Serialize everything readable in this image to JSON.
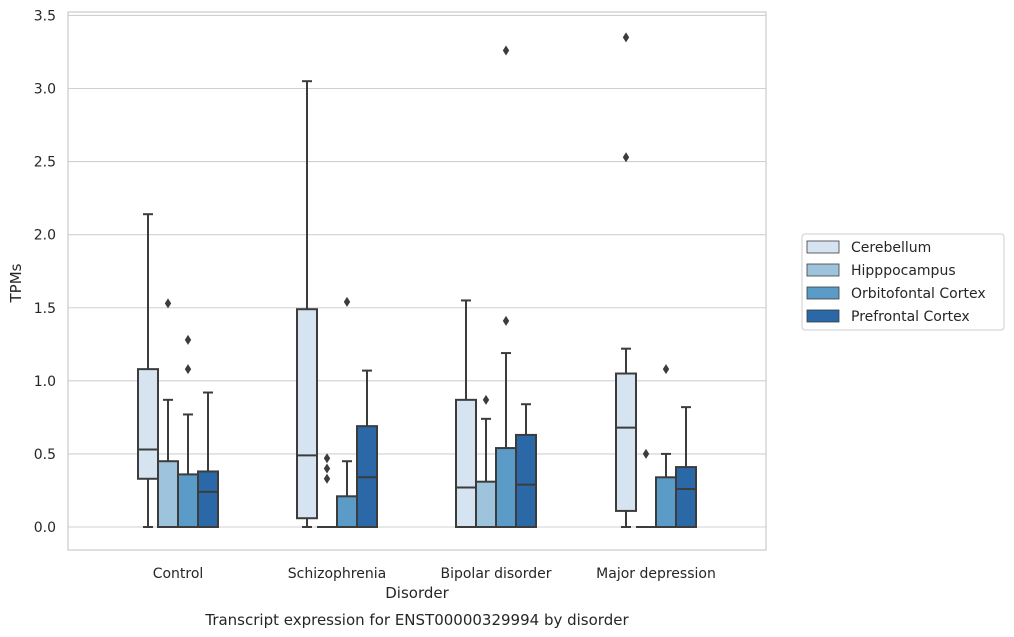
{
  "colors": {
    "grid": "#d0d0d0",
    "frame": "#cccccc",
    "line": "#3c3c3c",
    "series": [
      "#d6e4f1",
      "#9ec4dd",
      "#5a9bc8",
      "#2a68a8"
    ]
  },
  "chart_data": {
    "type": "box",
    "title": "",
    "caption": "Transcript expression for ENST00000329994 by disorder",
    "xlabel": "Disorder",
    "ylabel": "TPMs",
    "ylim": [
      -0.15,
      3.52
    ],
    "yticks": [
      0.0,
      0.5,
      1.0,
      1.5,
      2.0,
      2.5,
      3.0,
      3.5
    ],
    "ytick_labels": [
      "0.0",
      "0.5",
      "1.0",
      "1.5",
      "2.0",
      "2.5",
      "3.0",
      "3.5"
    ],
    "grid": "horizontal",
    "legend_position": "right",
    "categories": [
      "Control",
      "Schizophrenia",
      "Bipolar disorder",
      "Major depression"
    ],
    "series": [
      {
        "name": "Cerebellum",
        "boxes": [
          {
            "q1": 0.33,
            "median": 0.53,
            "q3": 1.08,
            "whislo": 0.0,
            "whishi": 2.14,
            "fliers": []
          },
          {
            "q1": 0.06,
            "median": 0.49,
            "q3": 1.49,
            "whislo": 0.0,
            "whishi": 3.05,
            "fliers": []
          },
          {
            "q1": 0.0,
            "median": 0.27,
            "q3": 0.87,
            "whislo": 0.0,
            "whishi": 1.55,
            "fliers": []
          },
          {
            "q1": 0.11,
            "median": 0.68,
            "q3": 1.05,
            "whislo": 0.0,
            "whishi": 1.22,
            "fliers": [
              2.53,
              3.35
            ]
          }
        ]
      },
      {
        "name": "Hipppocampus",
        "boxes": [
          {
            "q1": 0.0,
            "median": 0.0,
            "q3": 0.45,
            "whislo": 0.0,
            "whishi": 0.87,
            "fliers": [
              1.53
            ]
          },
          {
            "q1": 0.0,
            "median": 0.0,
            "q3": 0.0,
            "whislo": 0.0,
            "whishi": 0.0,
            "fliers": [
              0.33,
              0.4,
              0.47
            ]
          },
          {
            "q1": 0.0,
            "median": 0.0,
            "q3": 0.31,
            "whislo": 0.0,
            "whishi": 0.74,
            "fliers": [
              0.87
            ]
          },
          {
            "q1": 0.0,
            "median": 0.0,
            "q3": 0.0,
            "whislo": 0.0,
            "whishi": 0.0,
            "fliers": [
              0.5
            ]
          }
        ]
      },
      {
        "name": "Orbitofontal Cortex",
        "boxes": [
          {
            "q1": 0.0,
            "median": 0.0,
            "q3": 0.36,
            "whislo": 0.0,
            "whishi": 0.77,
            "fliers": [
              1.08,
              1.28
            ]
          },
          {
            "q1": 0.0,
            "median": 0.0,
            "q3": 0.21,
            "whislo": 0.0,
            "whishi": 0.45,
            "fliers": [
              1.54
            ]
          },
          {
            "q1": 0.0,
            "median": 0.0,
            "q3": 0.54,
            "whislo": 0.0,
            "whishi": 1.19,
            "fliers": [
              1.41,
              3.26
            ]
          },
          {
            "q1": 0.0,
            "median": 0.0,
            "q3": 0.34,
            "whislo": 0.0,
            "whishi": 0.5,
            "fliers": [
              1.08
            ]
          }
        ]
      },
      {
        "name": "Prefrontal Cortex",
        "boxes": [
          {
            "q1": 0.0,
            "median": 0.24,
            "q3": 0.38,
            "whislo": 0.0,
            "whishi": 0.92,
            "fliers": []
          },
          {
            "q1": 0.0,
            "median": 0.34,
            "q3": 0.69,
            "whislo": 0.0,
            "whishi": 1.07,
            "fliers": []
          },
          {
            "q1": 0.0,
            "median": 0.29,
            "q3": 0.63,
            "whislo": 0.0,
            "whishi": 0.84,
            "fliers": []
          },
          {
            "q1": 0.0,
            "median": 0.26,
            "q3": 0.41,
            "whislo": 0.0,
            "whishi": 0.82,
            "fliers": []
          }
        ]
      }
    ]
  }
}
